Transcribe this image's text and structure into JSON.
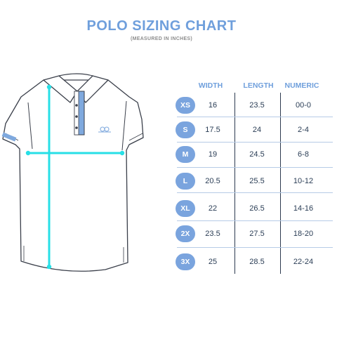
{
  "title": "POLO SIZING CHART",
  "subtitle": "(MEASURED IN INCHES)",
  "columns": [
    "WIDTH",
    "LENGTH",
    "NUMERIC"
  ],
  "rows": [
    {
      "size": "XS",
      "width": "16",
      "length": "23.5",
      "numeric": "00-0"
    },
    {
      "size": "S",
      "width": "17.5",
      "length": "24",
      "numeric": "2-4"
    },
    {
      "size": "M",
      "width": "19",
      "length": "24.5",
      "numeric": "6-8"
    },
    {
      "size": "L",
      "width": "20.5",
      "length": "25.5",
      "numeric": "10-12"
    },
    {
      "size": "XL",
      "width": "22",
      "length": "26.5",
      "numeric": "14-16"
    },
    {
      "size": "2X",
      "width": "23.5",
      "length": "27.5",
      "numeric": "18-20"
    },
    {
      "size": "3X",
      "width": "25",
      "length": "28.5",
      "numeric": "22-24"
    }
  ],
  "colors": {
    "accent": "#6f9fdc",
    "badge": "#7aa4de",
    "measure_line": "#27dfe6",
    "shirt_outline": "#3a3f4a",
    "placket_stripe": "#7fa9de"
  }
}
